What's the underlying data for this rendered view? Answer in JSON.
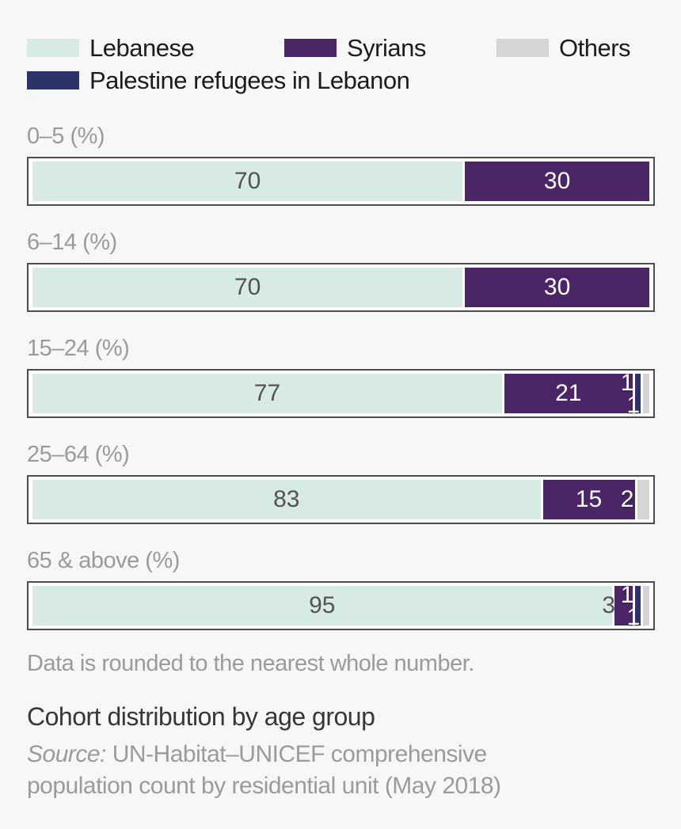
{
  "colors": {
    "lebanese": "#d7eae4",
    "syrians": "#4a2666",
    "palestine": "#2c3366",
    "others": "#d5d5d5",
    "background": "#f7f7f7",
    "bar_border": "#4d4d4d",
    "label_dark": "#545454",
    "label_light": "#ffffff",
    "muted_text": "#9b9b9b",
    "title_text": "#373737"
  },
  "legend": {
    "items": [
      {
        "id": "lebanese",
        "label": "Lebanese"
      },
      {
        "id": "syrians",
        "label": "Syrians"
      },
      {
        "id": "others",
        "label": "Others"
      },
      {
        "id": "palestine",
        "label": "Palestine refugees in Lebanon"
      }
    ]
  },
  "chart_data": {
    "type": "bar",
    "orientation": "horizontal",
    "stacked": true,
    "unit": "%",
    "xlim": [
      0,
      100
    ],
    "grid": false,
    "legend_position": "top",
    "categories": [
      "0–5 (%)",
      "6–14 (%)",
      "15–24 (%)",
      "25–64 (%)",
      "65 & above (%)"
    ],
    "series": [
      {
        "name": "Lebanese",
        "values": [
          70,
          70,
          77,
          83,
          95
        ]
      },
      {
        "name": "Syrians",
        "values": [
          30,
          30,
          21,
          15,
          3
        ]
      },
      {
        "name": "Palestine refugees in Lebanon",
        "values": [
          0,
          0,
          1,
          0,
          1
        ]
      },
      {
        "name": "Others",
        "values": [
          0,
          0,
          1,
          2,
          1
        ]
      }
    ],
    "note": "Data is rounded to the nearest whole number.",
    "title": "Cohort distribution by age group",
    "source": "UN-Habitat–UNICEF comprehensive population count by residential unit (May 2018)"
  },
  "bars": [
    {
      "category": "0–5 (%)",
      "segments": [
        {
          "group": "lebanese",
          "value": 70,
          "label": "70",
          "label_pos": "center",
          "label_tone": "dark"
        },
        {
          "group": "syrians",
          "value": 30,
          "label": "30",
          "label_pos": "center",
          "label_tone": "light"
        }
      ]
    },
    {
      "category": "6–14 (%)",
      "segments": [
        {
          "group": "lebanese",
          "value": 70,
          "label": "70",
          "label_pos": "center",
          "label_tone": "dark"
        },
        {
          "group": "syrians",
          "value": 30,
          "label": "30",
          "label_pos": "center",
          "label_tone": "light"
        }
      ]
    },
    {
      "category": "15–24 (%)",
      "segments": [
        {
          "group": "lebanese",
          "value": 77,
          "label": "77",
          "label_pos": "center",
          "label_tone": "dark"
        },
        {
          "group": "syrians",
          "value": 21,
          "label": "21",
          "label_pos": "center",
          "label_tone": "light"
        },
        {
          "group": "palestine",
          "value": 1,
          "label": "1",
          "label_pos": "before-top",
          "label_tone": "light"
        },
        {
          "group": "others",
          "value": 1,
          "label": "1",
          "label_pos": "before-bottom",
          "label_tone": "light"
        }
      ]
    },
    {
      "category": "25–64 (%)",
      "segments": [
        {
          "group": "lebanese",
          "value": 83,
          "label": "83",
          "label_pos": "center",
          "label_tone": "dark"
        },
        {
          "group": "syrians",
          "value": 15,
          "label": "15",
          "label_pos": "center",
          "label_tone": "light"
        },
        {
          "group": "others",
          "value": 2,
          "label": "2",
          "label_pos": "before-middle",
          "label_tone": "light"
        }
      ]
    },
    {
      "category": "65 & above (%)",
      "segments": [
        {
          "group": "lebanese",
          "value": 95,
          "label": "95",
          "label_pos": "center",
          "label_tone": "dark"
        },
        {
          "group": "syrians",
          "value": 3,
          "label": "3",
          "label_pos": "before-middle",
          "label_tone": "dark"
        },
        {
          "group": "palestine",
          "value": 1,
          "label": "1",
          "label_pos": "before-top",
          "label_tone": "light"
        },
        {
          "group": "others",
          "value": 1,
          "label": "1",
          "label_pos": "before-bottom",
          "label_tone": "light"
        }
      ]
    }
  ],
  "footer": {
    "note": "Data is rounded to the nearest whole number.",
    "title": "Cohort distribution by age group",
    "source_prefix": "Source:",
    "source_text": " UN-Habitat–UNICEF comprehensive population count by residential unit (May 2018)"
  }
}
